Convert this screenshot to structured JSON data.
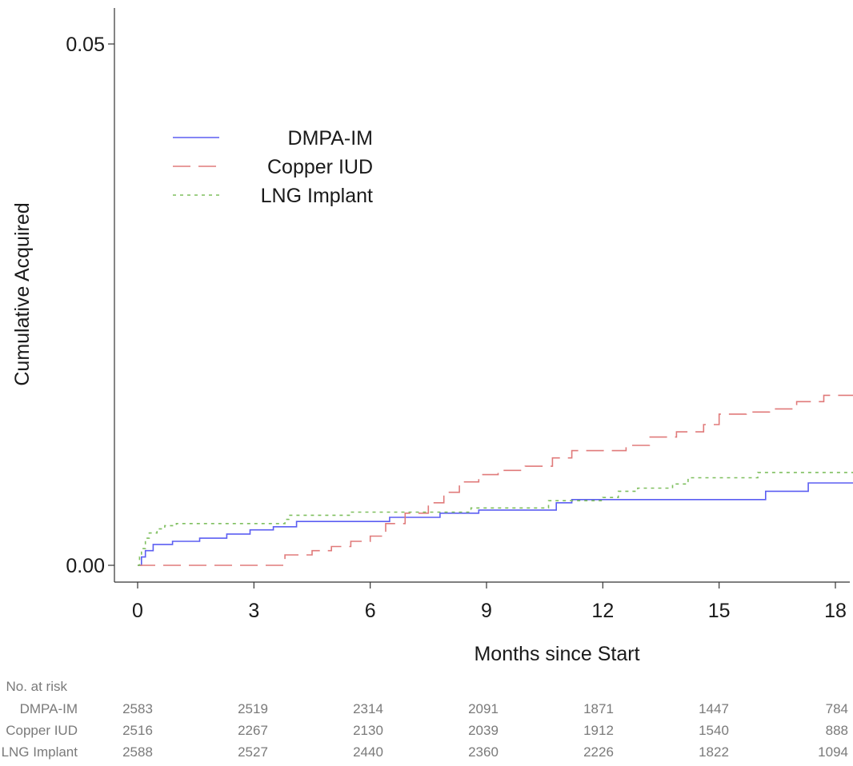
{
  "chart_data": {
    "type": "line",
    "title": "",
    "xlabel": "Months since Start",
    "ylabel": "Cumulative Acquired",
    "xlim": [
      -0.6,
      18.5
    ],
    "ylim": [
      -0.0015,
      0.0535
    ],
    "x_ticks": [
      "0",
      "3",
      "6",
      "9",
      "12",
      "15",
      "18"
    ],
    "x_tick_values": [
      0,
      3,
      6,
      9,
      12,
      15,
      18
    ],
    "y_ticks": [
      "0.00",
      "0.05"
    ],
    "y_tick_values": [
      0,
      0.05
    ],
    "step": true,
    "legend_position": "top-left",
    "series": [
      {
        "name": "DMPA-IM",
        "color": "#5b5ef2",
        "dash": "solid",
        "points": [
          [
            0,
            0
          ],
          [
            0.1,
            0.0008
          ],
          [
            0.2,
            0.0014
          ],
          [
            0.4,
            0.002
          ],
          [
            0.9,
            0.0023
          ],
          [
            1.6,
            0.0026
          ],
          [
            2.3,
            0.003
          ],
          [
            2.9,
            0.0034
          ],
          [
            3.5,
            0.0037
          ],
          [
            4.1,
            0.0042
          ],
          [
            6.5,
            0.0046
          ],
          [
            7.8,
            0.005
          ],
          [
            8.8,
            0.0053
          ],
          [
            10.8,
            0.006
          ],
          [
            11.2,
            0.0063
          ],
          [
            16.2,
            0.0071
          ],
          [
            17.3,
            0.0079
          ],
          [
            18.5,
            0.0079
          ]
        ]
      },
      {
        "name": "Copper IUD",
        "color": "#e07a7a",
        "dash": "dashed",
        "points": [
          [
            0,
            0
          ],
          [
            3.7,
            0
          ],
          [
            3.8,
            0.001
          ],
          [
            4.5,
            0.0014
          ],
          [
            5.0,
            0.0018
          ],
          [
            5.5,
            0.0023
          ],
          [
            6.0,
            0.0028
          ],
          [
            6.4,
            0.004
          ],
          [
            6.9,
            0.005
          ],
          [
            7.5,
            0.006
          ],
          [
            7.9,
            0.007
          ],
          [
            8.3,
            0.008
          ],
          [
            8.8,
            0.0087
          ],
          [
            9.3,
            0.0091
          ],
          [
            10.0,
            0.0095
          ],
          [
            10.7,
            0.0103
          ],
          [
            11.2,
            0.011
          ],
          [
            12.6,
            0.0115
          ],
          [
            13.2,
            0.0123
          ],
          [
            13.9,
            0.0128
          ],
          [
            14.6,
            0.0135
          ],
          [
            15.0,
            0.0145
          ],
          [
            15.7,
            0.0147
          ],
          [
            16.3,
            0.015
          ],
          [
            17.0,
            0.0157
          ],
          [
            17.7,
            0.0163
          ],
          [
            18.5,
            0.0163
          ]
        ]
      },
      {
        "name": "LNG Implant",
        "color": "#7fbf5f",
        "dash": "dotted",
        "points": [
          [
            0,
            0
          ],
          [
            0.05,
            0.0008
          ],
          [
            0.1,
            0.0016
          ],
          [
            0.2,
            0.0026
          ],
          [
            0.3,
            0.0031
          ],
          [
            0.5,
            0.0035
          ],
          [
            0.7,
            0.0038
          ],
          [
            1.0,
            0.004
          ],
          [
            3.8,
            0.0044
          ],
          [
            3.9,
            0.0048
          ],
          [
            5.5,
            0.0051
          ],
          [
            8.6,
            0.0055
          ],
          [
            10.6,
            0.0062
          ],
          [
            12.0,
            0.0065
          ],
          [
            12.4,
            0.0071
          ],
          [
            12.9,
            0.0074
          ],
          [
            13.8,
            0.0078
          ],
          [
            14.2,
            0.0084
          ],
          [
            16.0,
            0.0089
          ],
          [
            18.5,
            0.0089
          ]
        ]
      }
    ],
    "risk_table": {
      "header": "No. at risk",
      "timepoints": [
        0,
        3,
        6,
        9,
        12,
        15,
        18
      ],
      "rows": [
        {
          "label": "DMPA-IM",
          "values": [
            "2583",
            "2519",
            "2314",
            "2091",
            "1871",
            "1447",
            "784"
          ]
        },
        {
          "label": "Copper IUD",
          "values": [
            "2516",
            "2267",
            "2130",
            "2039",
            "1912",
            "1540",
            "888"
          ]
        },
        {
          "label": "LNG Implant",
          "values": [
            "2588",
            "2527",
            "2440",
            "2360",
            "2226",
            "1822",
            "1094"
          ]
        }
      ]
    }
  }
}
